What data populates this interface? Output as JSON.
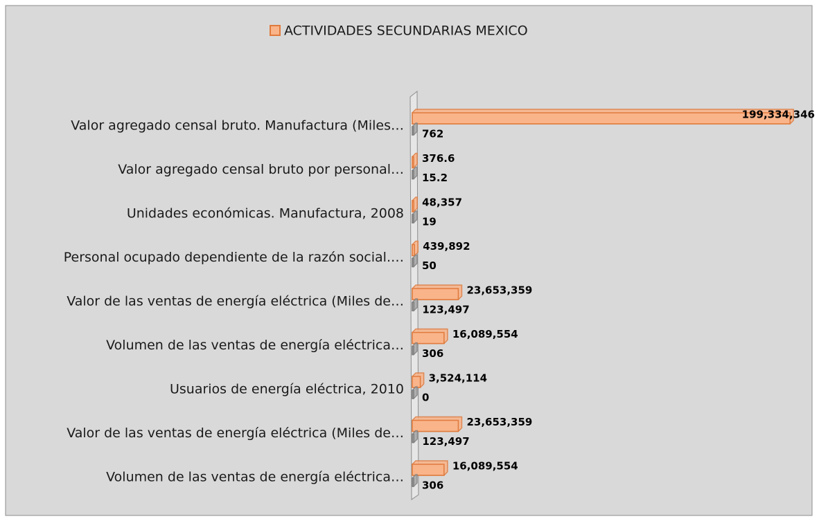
{
  "chart_data": {
    "type": "bar",
    "orientation": "horizontal",
    "categories": [
      "Valor agregado censal bruto. Manufactura (Miles…",
      "Valor agregado censal bruto por personal…",
      "Unidades económicas. Manufactura, 2008",
      "Personal ocupado dependiente de la razón social.…",
      "Valor de las ventas de energía eléctrica (Miles de…",
      "Volumen de las ventas de energía eléctrica…",
      "Usuarios de energía eléctrica, 2010",
      "Valor de las ventas de energía eléctrica (Miles de…",
      "Volumen de las ventas de energía eléctrica…"
    ],
    "series": [
      {
        "name": "ACTIVIDADES SECUNDARIAS MEXICO",
        "color": "#f9b48a",
        "values": [
          199334346,
          376.6,
          48357,
          439892,
          23653359,
          16089554,
          3524114,
          23653359,
          16089554
        ],
        "value_labels": [
          "199,334,346",
          "376.6",
          "48,357",
          "439,892",
          "23,653,359",
          "16,089,554",
          "3,524,114",
          "23,653,359",
          "16,089,554"
        ]
      },
      {
        "color": "#a6a6a6",
        "values": [
          762,
          15.2,
          19,
          50,
          123497,
          306,
          0,
          123497,
          306
        ],
        "value_labels": [
          "762",
          "15.2",
          "19",
          "50",
          "123,497",
          "306",
          "0",
          "123,497",
          "306"
        ]
      }
    ],
    "xlim": [
      0,
      200000000
    ],
    "legend": "top"
  }
}
